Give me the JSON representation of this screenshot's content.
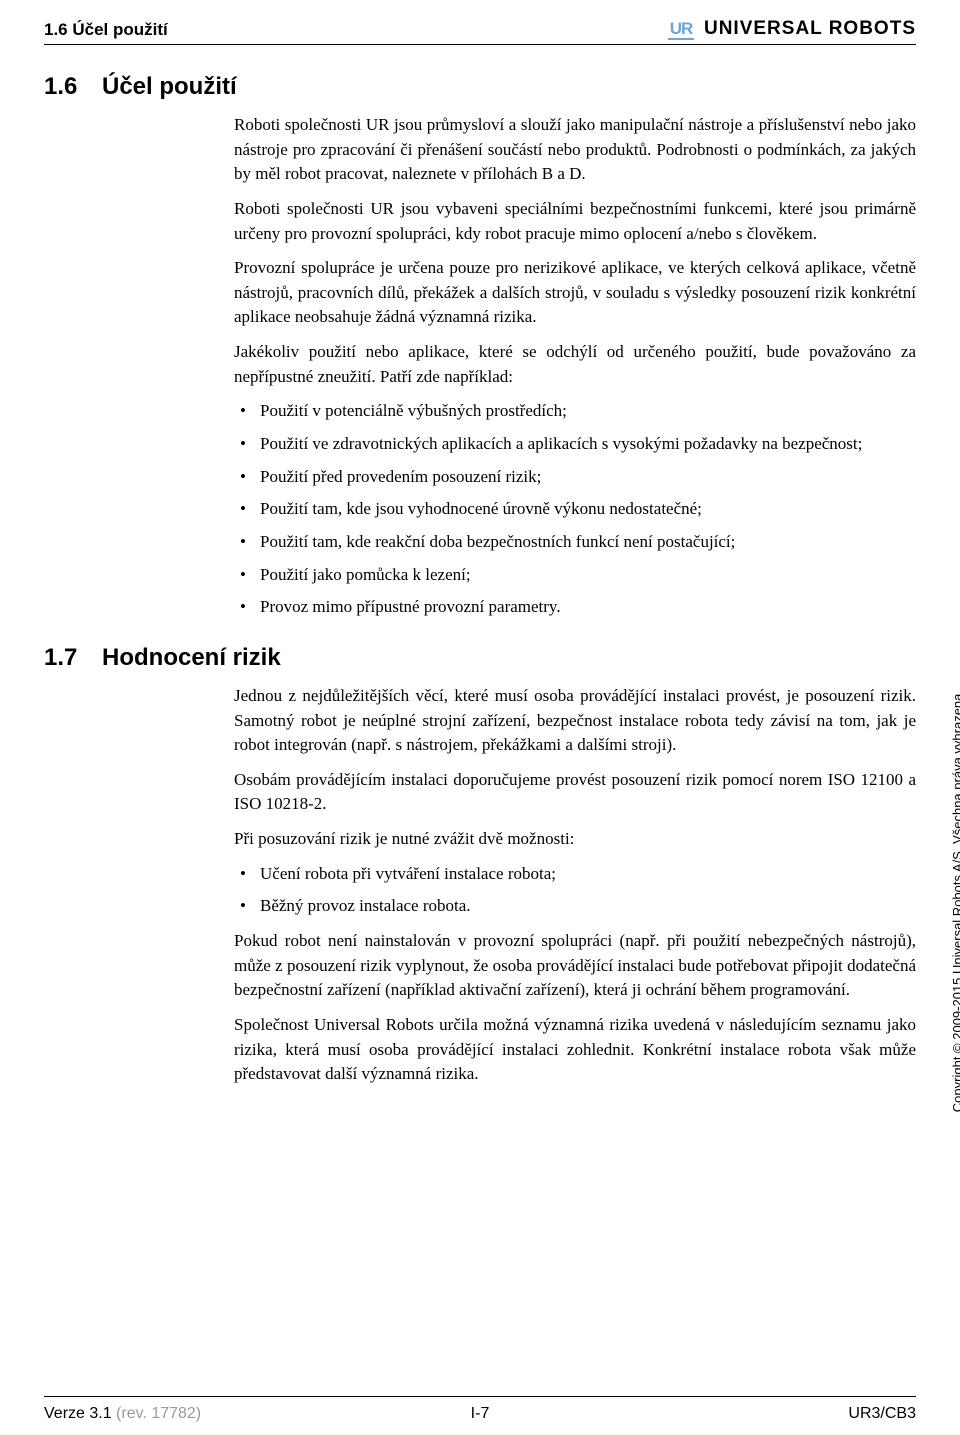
{
  "header": {
    "running_title": "1.6 Účel použití",
    "logo_text": "UR",
    "brand": "UNIVERSAL ROBOTS"
  },
  "section_16": {
    "num": "1.6",
    "title": "Účel použití",
    "p1": "Roboti společnosti UR jsou průmysloví a slouží jako manipulační nástroje a příslušenství nebo jako nástroje pro zpracování či přenášení součástí nebo produktů. Podrobnosti o podmínkách, za jakých by měl robot pracovat, naleznete v přílohách B a D.",
    "p2": "Roboti společnosti UR jsou vybaveni speciálními bezpečnostními funkcemi, které jsou primárně určeny pro provozní spolupráci, kdy robot pracuje mimo oplocení a/nebo s člověkem.",
    "p3": "Provozní spolupráce je určena pouze pro nerizikové aplikace, ve kterých celková aplikace, včetně nástrojů, pracovních dílů, překážek a dalších strojů, v souladu s výsledky posouzení rizik konkrétní aplikace neobsahuje žádná významná rizika.",
    "p4": "Jakékoliv použití nebo aplikace, které se odchýlí od určeného použití, bude považováno za nepřípustné zneužití. Patří zde například:",
    "bullets": [
      "Použití v potenciálně výbušných prostředích;",
      "Použití ve zdravotnických aplikacích a aplikacích s vysokými požadavky na bezpečnost;",
      "Použití před provedením posouzení rizik;",
      "Použití tam, kde jsou vyhodnocené úrovně výkonu nedostatečné;",
      "Použití tam, kde reakční doba bezpečnostních funkcí není postačující;",
      "Použití jako pomůcka k lezení;",
      "Provoz mimo přípustné provozní parametry."
    ]
  },
  "section_17": {
    "num": "1.7",
    "title": "Hodnocení rizik",
    "p1": "Jednou z nejdůležitějších věcí, které musí osoba provádějící instalaci provést, je posouzení rizik. Samotný robot je neúplné strojní zařízení, bezpečnost instalace robota tedy závisí na tom, jak je robot integrován (např. s nástrojem, překážkami a dalšími stroji).",
    "p2": "Osobám provádějícím instalaci doporučujeme provést posouzení rizik pomocí norem ISO 12100 a ISO 10218-2.",
    "p3": "Při posuzování rizik je nutné zvážit dvě možnosti:",
    "bullets": [
      "Učení robota při vytváření instalace robota;",
      "Běžný provoz instalace robota."
    ],
    "p4": "Pokud robot není nainstalován v provozní spolupráci (např. při použití nebezpečných nástrojů), může z posouzení rizik vyplynout, že osoba provádějící instalaci bude potřebovat připojit dodatečná bezpečnostní zařízení (například aktivační zařízení), která ji ochrání během programování.",
    "p5": "Společnost Universal Robots určila možná významná rizika uvedená v následujícím seznamu jako rizika, která musí osoba provádějící instalaci zohlednit. Konkrétní instalace robota však může představovat další významná rizika."
  },
  "side_text": "Copyright © 2009-2015 Universal Robots A/S. Všechna práva vyhrazena.",
  "footer": {
    "left_version": "Verze 3.1",
    "left_rev": " (rev. 17782)",
    "center": "I-7",
    "right": "UR3/CB3"
  }
}
